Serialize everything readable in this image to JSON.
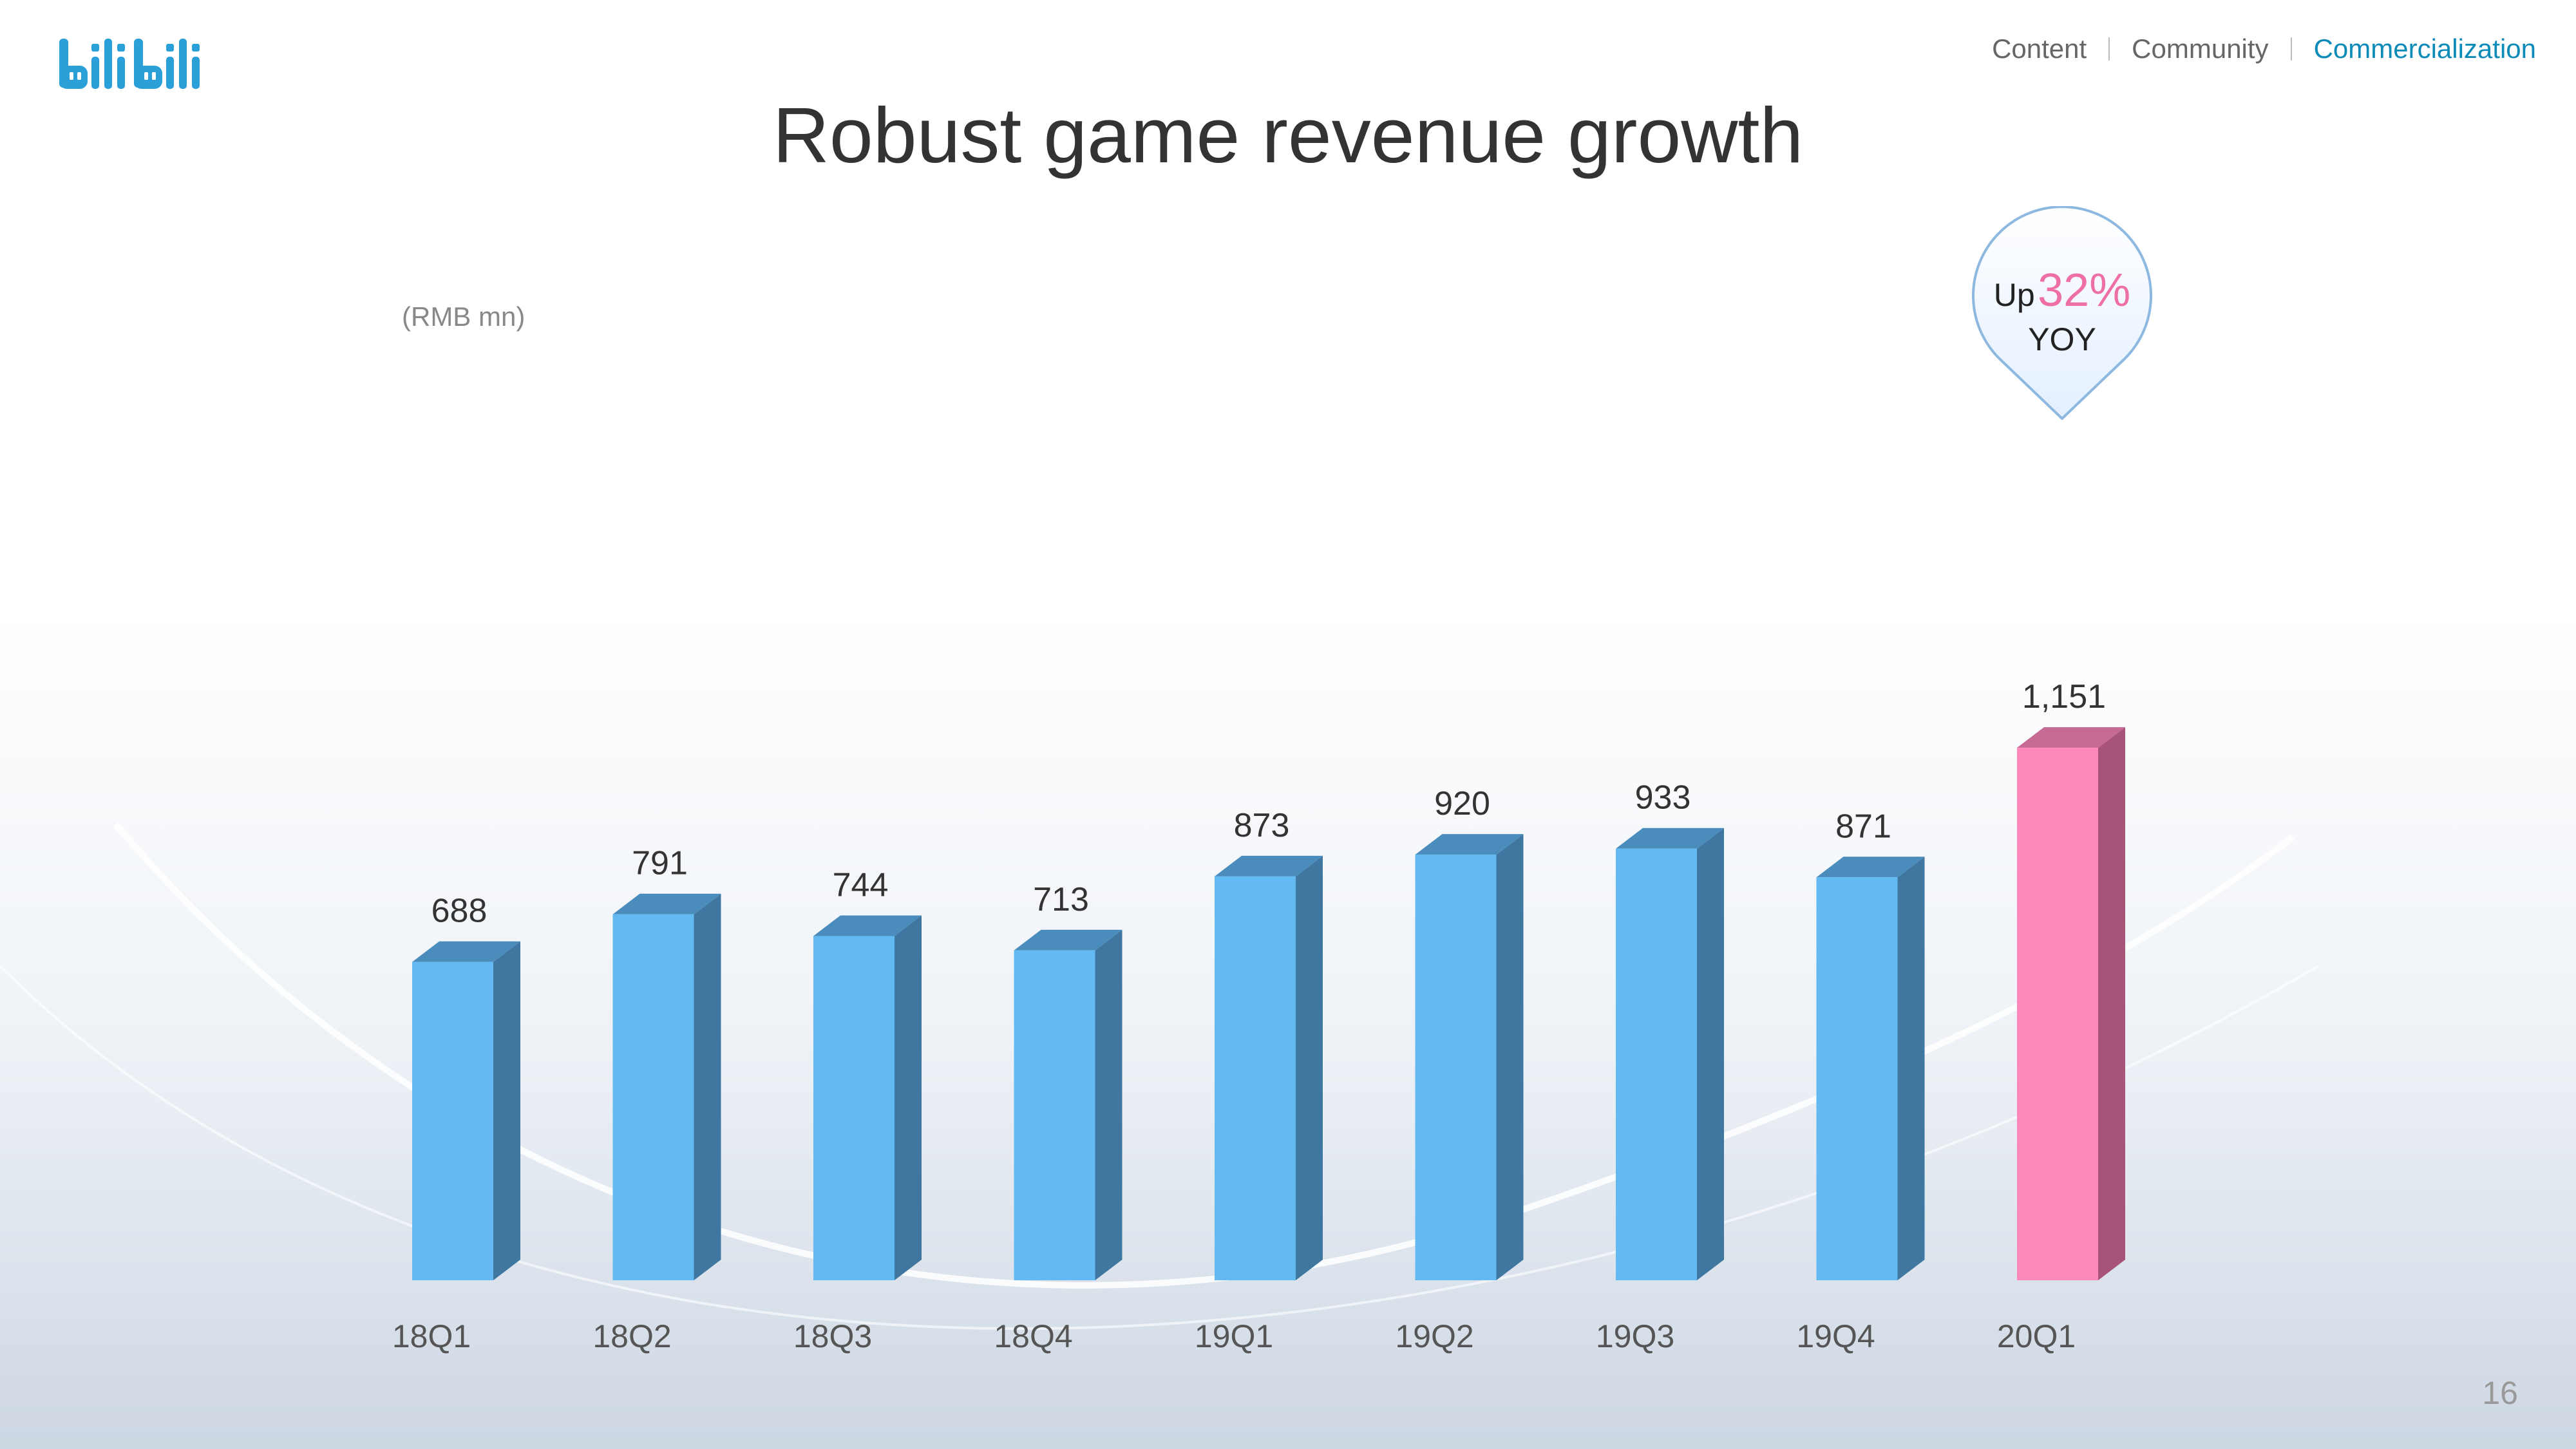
{
  "header": {
    "nav": [
      {
        "label": "Content",
        "active": false
      },
      {
        "label": "Community",
        "active": false
      },
      {
        "label": "Commercialization",
        "active": true
      }
    ],
    "logo_text": "bilibili"
  },
  "slide": {
    "title": "Robust game revenue growth",
    "unit": "(RMB mn)",
    "page_number": "16"
  },
  "callout": {
    "prefix": "Up",
    "value": "32%",
    "suffix": "YOY"
  },
  "colors": {
    "bar_front": "#63b9f1",
    "bar_side": "#3f77a0",
    "bar_top": "#4a8dbd",
    "highlight_front": "#ff88bb",
    "highlight_side": "#a85479",
    "highlight_top": "#c66a94",
    "accent_nav": "#0c8ab8",
    "accent_pct": "#ee6fa3"
  },
  "chart_data": {
    "type": "bar",
    "categories": [
      "18Q1",
      "18Q2",
      "18Q3",
      "18Q4",
      "19Q1",
      "19Q2",
      "19Q3",
      "19Q4",
      "20Q1"
    ],
    "values": [
      688,
      791,
      744,
      713,
      873,
      920,
      933,
      871,
      1151
    ],
    "labels": [
      "688",
      "791",
      "744",
      "713",
      "873",
      "920",
      "933",
      "871",
      "1,151"
    ],
    "highlight_index": 8,
    "ylabel": "(RMB mn)",
    "legend": "none",
    "grid": false
  }
}
